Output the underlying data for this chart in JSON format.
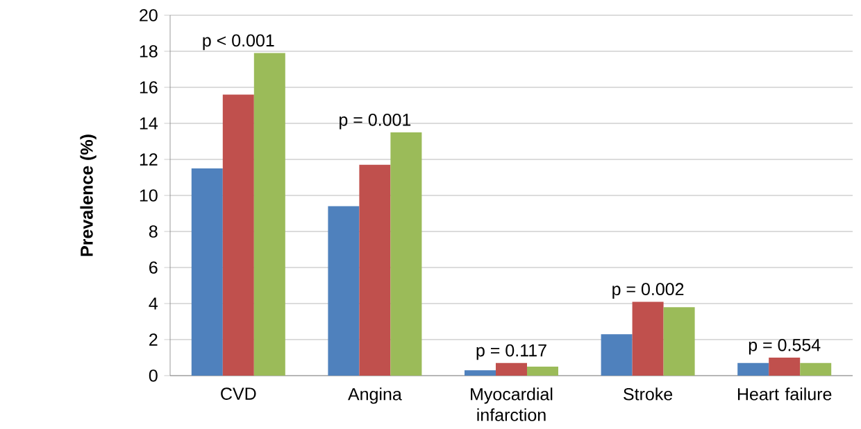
{
  "chart_data": {
    "type": "bar",
    "ylabel": "Prevalence (%)",
    "categories": [
      "CVD",
      "Angina",
      "Myocardial infarction",
      "Stroke",
      "Heart failure"
    ],
    "series": [
      {
        "color": "#4f81bd",
        "values": [
          11.5,
          9.4,
          0.3,
          2.3,
          0.7
        ]
      },
      {
        "color": "#c0504d",
        "values": [
          15.6,
          11.7,
          0.7,
          4.1,
          1.0
        ]
      },
      {
        "color": "#9bbb59",
        "values": [
          17.9,
          13.5,
          0.5,
          3.8,
          0.7
        ]
      }
    ],
    "ylim": [
      0,
      20
    ],
    "yticks": [
      0,
      2,
      4,
      6,
      8,
      10,
      12,
      14,
      16,
      18,
      20
    ],
    "grid": "y",
    "annotations": [
      "p < 0.001",
      "p = 0.001",
      "p = 0.117",
      "p = 0.002",
      "p = 0.554"
    ]
  }
}
